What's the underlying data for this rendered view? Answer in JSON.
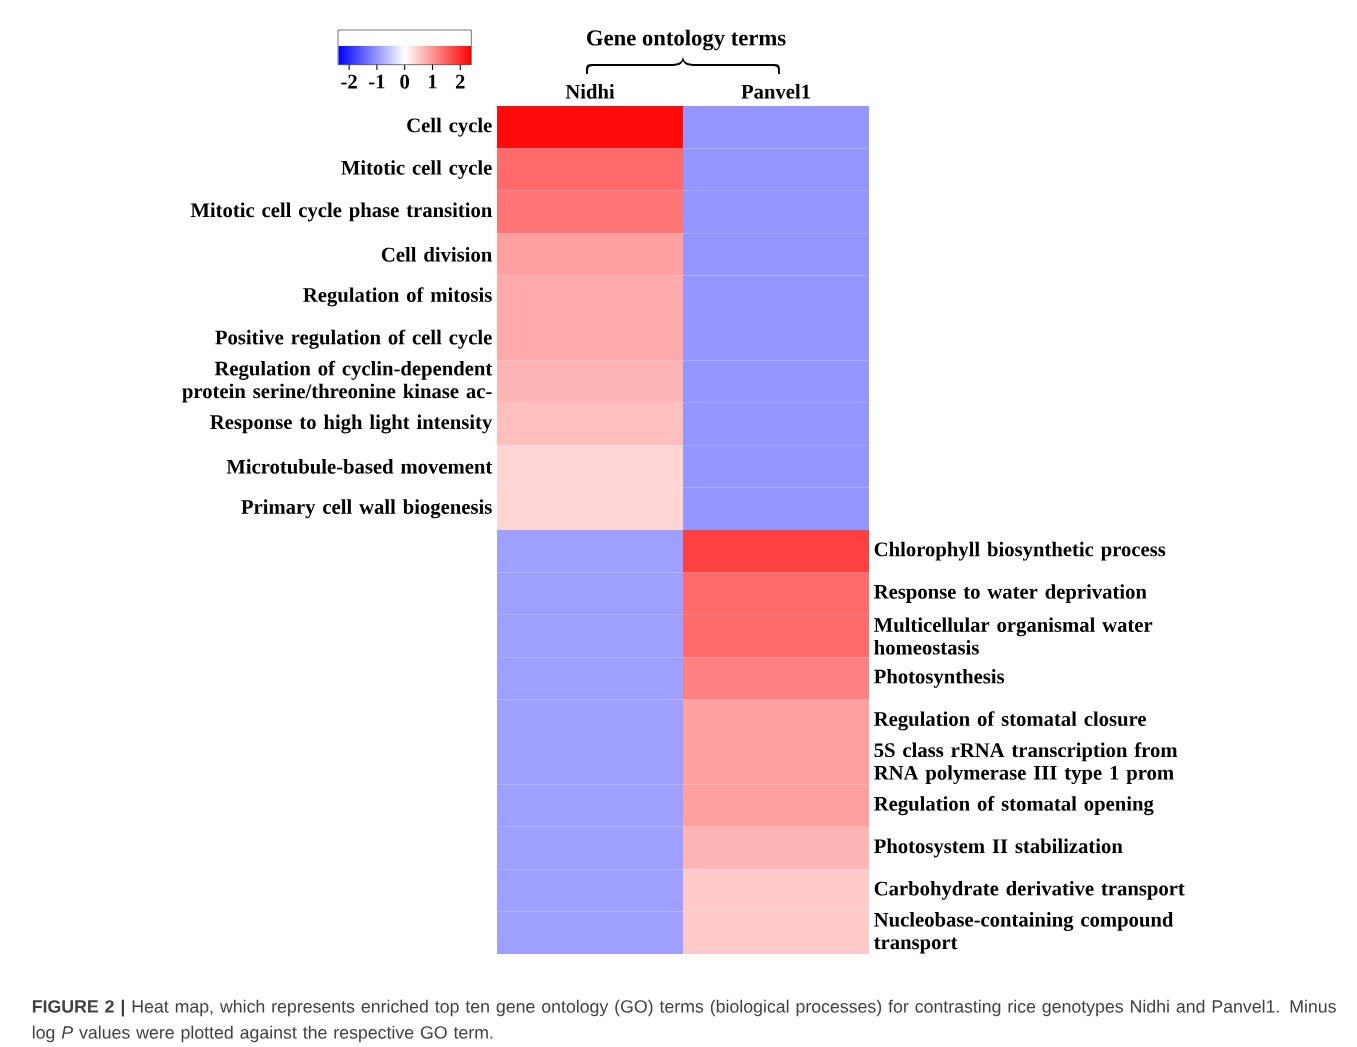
{
  "chart_data": {
    "type": "heatmap",
    "title": "Gene ontology terms",
    "categories": [
      "Nidhi",
      "Panvel1"
    ],
    "y_categories": [
      "Cell cycle",
      "Mitotic cell cycle",
      "Mitotic cell cycle phase transition",
      "Cell division",
      "Regulation of mitosis",
      "Positive regulation of cell cycle",
      "Regulation of cyclin-dependent protein serine/threonine kinase ac-",
      "Response to high light intensity",
      "Microtubule-based movement",
      "Primary cell wall biogenesis",
      null,
      null,
      null,
      null,
      null,
      null,
      null,
      null,
      null,
      null
    ],
    "y2_categories": [
      null,
      null,
      null,
      null,
      null,
      null,
      null,
      null,
      null,
      null,
      "Chlorophyll biosynthetic process",
      "Response to water deprivation",
      "Multicellular organismal water homeostasis",
      "Photosynthesis",
      "Regulation of stomatal closure",
      "5S class rRNA transcription from RNA polymerase III type 1 prom",
      "Regulation of stomatal opening",
      "Photosystem II stabilization",
      "Carbohydrate derivative transport",
      "Nucleobase-containing compound transport"
    ],
    "cells": [
      [
        2.3,
        -1.0
      ],
      [
        1.4,
        -1.0
      ],
      [
        1.3,
        -1.0
      ],
      [
        0.9,
        -1.0
      ],
      [
        0.8,
        -1.0
      ],
      [
        0.8,
        -1.0
      ],
      [
        0.7,
        -1.0
      ],
      [
        0.6,
        -1.0
      ],
      [
        0.4,
        -1.0
      ],
      [
        0.4,
        -1.0
      ],
      [
        -0.9,
        1.8
      ],
      [
        -0.9,
        1.4
      ],
      [
        -0.9,
        1.4
      ],
      [
        -0.9,
        1.2
      ],
      [
        -0.9,
        0.9
      ],
      [
        -0.9,
        0.9
      ],
      [
        -0.9,
        0.9
      ],
      [
        -0.9,
        0.7
      ],
      [
        -0.9,
        0.5
      ],
      [
        -0.9,
        0.5
      ]
    ],
    "clim": [
      -2.4,
      2.4
    ],
    "cticks": [
      -2,
      -1,
      0,
      1,
      2
    ],
    "annotations": [
      "**FIGURE 2 |** Heat map, which represents enriched top ten gene ontology (GO) terms (biological processes) for contrasting rice genotypes Nidhi and Panvel1. Minus log *P* values were plotted against the respective GO term."
    ]
  }
}
